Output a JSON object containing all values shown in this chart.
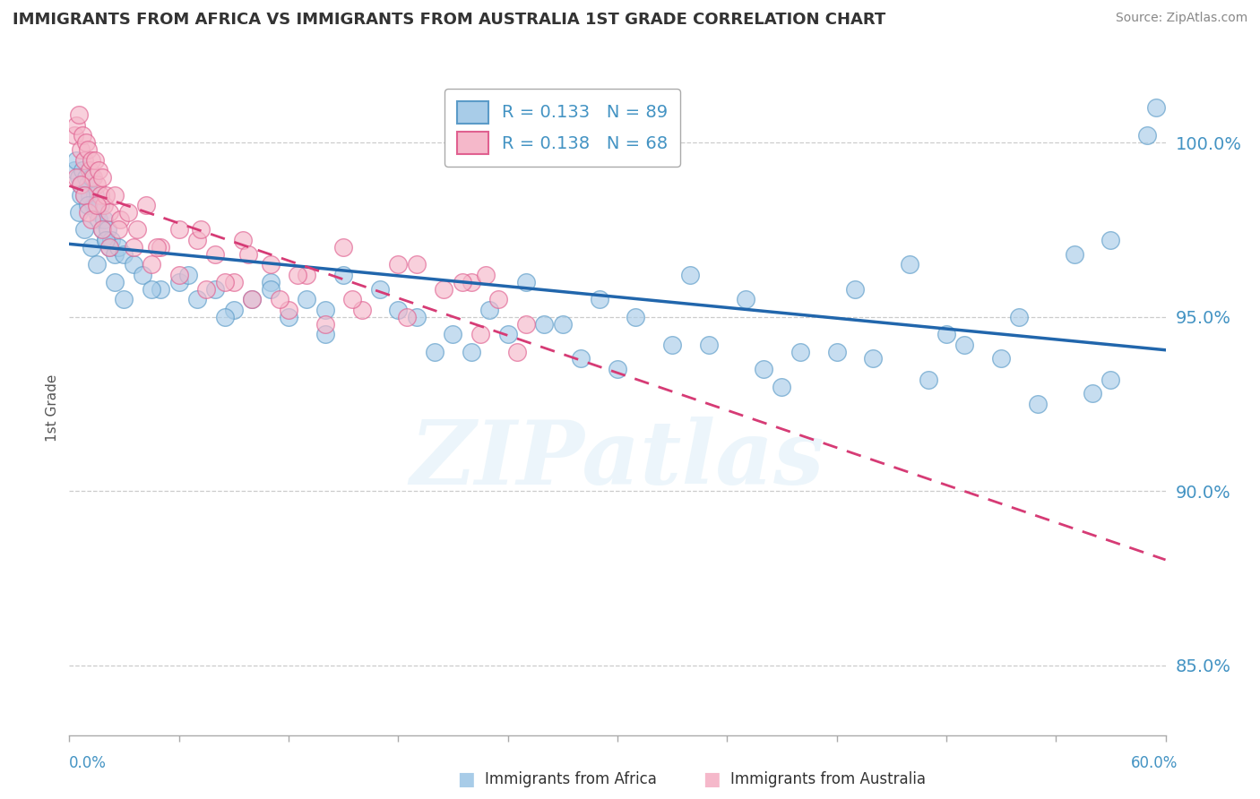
{
  "title": "IMMIGRANTS FROM AFRICA VS IMMIGRANTS FROM AUSTRALIA 1ST GRADE CORRELATION CHART",
  "source": "Source: ZipAtlas.com",
  "ylabel": "1st Grade",
  "xlim": [
    0.0,
    60.0
  ],
  "ylim": [
    83.0,
    101.8
  ],
  "yticks": [
    85.0,
    90.0,
    95.0,
    100.0
  ],
  "xticks": [
    0.0,
    6.0,
    12.0,
    18.0,
    24.0,
    30.0,
    36.0,
    42.0,
    48.0,
    54.0,
    60.0
  ],
  "legend_r1": "R = 0.133",
  "legend_n1": "N = 89",
  "legend_r2": "R = 0.138",
  "legend_n2": "N = 68",
  "color_africa": "#a8cce8",
  "color_africa_edge": "#5b9bc8",
  "color_australia": "#f5b8ca",
  "color_australia_edge": "#e06090",
  "color_africa_line": "#2166ac",
  "color_australia_line": "#d63b75",
  "watermark": "ZIPatlas",
  "africa_x": [
    0.3,
    0.4,
    0.5,
    0.6,
    0.7,
    0.8,
    0.9,
    1.0,
    1.1,
    1.2,
    1.3,
    1.4,
    1.5,
    1.6,
    1.7,
    1.8,
    1.9,
    2.0,
    2.1,
    2.2,
    2.3,
    2.5,
    2.7,
    3.0,
    3.5,
    4.0,
    5.0,
    6.0,
    7.0,
    8.0,
    9.0,
    10.0,
    11.0,
    12.0,
    13.0,
    14.0,
    15.0,
    17.0,
    19.0,
    21.0,
    23.0,
    25.0,
    27.0,
    29.0,
    31.0,
    34.0,
    37.0,
    40.0,
    43.0,
    46.0,
    49.0,
    52.0,
    55.0,
    57.0,
    59.0,
    0.5,
    0.6,
    0.8,
    1.0,
    1.2,
    1.5,
    2.0,
    2.5,
    3.0,
    4.5,
    6.5,
    8.5,
    11.0,
    14.0,
    18.0,
    22.0,
    26.0,
    30.0,
    35.0,
    39.0,
    44.0,
    48.0,
    53.0,
    57.0,
    59.5,
    20.0,
    24.0,
    28.0,
    33.0,
    38.0,
    42.0,
    47.0,
    51.0,
    56.0
  ],
  "africa_y": [
    99.2,
    99.5,
    99.0,
    98.8,
    99.2,
    98.5,
    99.0,
    98.8,
    98.5,
    99.0,
    98.2,
    98.5,
    98.0,
    97.8,
    98.2,
    97.5,
    97.8,
    97.2,
    97.5,
    97.0,
    97.2,
    96.8,
    97.0,
    96.8,
    96.5,
    96.2,
    95.8,
    96.0,
    95.5,
    95.8,
    95.2,
    95.5,
    96.0,
    95.0,
    95.5,
    95.2,
    96.2,
    95.8,
    95.0,
    94.5,
    95.2,
    96.0,
    94.8,
    95.5,
    95.0,
    96.2,
    95.5,
    94.0,
    95.8,
    96.5,
    94.2,
    95.0,
    96.8,
    97.2,
    100.2,
    98.0,
    98.5,
    97.5,
    98.2,
    97.0,
    96.5,
    97.2,
    96.0,
    95.5,
    95.8,
    96.2,
    95.0,
    95.8,
    94.5,
    95.2,
    94.0,
    94.8,
    93.5,
    94.2,
    93.0,
    93.8,
    94.5,
    92.5,
    93.2,
    101.0,
    94.0,
    94.5,
    93.8,
    94.2,
    93.5,
    94.0,
    93.2,
    93.8,
    92.8
  ],
  "australia_x": [
    0.3,
    0.4,
    0.5,
    0.6,
    0.7,
    0.8,
    0.9,
    1.0,
    1.1,
    1.2,
    1.3,
    1.4,
    1.5,
    1.6,
    1.7,
    1.8,
    1.9,
    2.0,
    2.2,
    2.5,
    2.8,
    3.2,
    3.7,
    4.2,
    5.0,
    6.0,
    7.0,
    8.0,
    9.5,
    11.0,
    13.0,
    15.0,
    18.0,
    22.0,
    0.4,
    0.6,
    0.8,
    1.0,
    1.2,
    1.5,
    1.8,
    2.2,
    2.7,
    3.5,
    4.5,
    6.0,
    7.5,
    9.0,
    10.0,
    12.0,
    14.0,
    16.0,
    8.5,
    11.5,
    4.8,
    7.2,
    9.8,
    12.5,
    15.5,
    18.5,
    22.5,
    24.5,
    19.0,
    21.5,
    23.5,
    25.0,
    20.5,
    22.8
  ],
  "australia_y": [
    100.2,
    100.5,
    100.8,
    99.8,
    100.2,
    99.5,
    100.0,
    99.8,
    99.2,
    99.5,
    99.0,
    99.5,
    98.8,
    99.2,
    98.5,
    99.0,
    98.2,
    98.5,
    98.0,
    98.5,
    97.8,
    98.0,
    97.5,
    98.2,
    97.0,
    97.5,
    97.2,
    96.8,
    97.2,
    96.5,
    96.2,
    97.0,
    96.5,
    96.0,
    99.0,
    98.8,
    98.5,
    98.0,
    97.8,
    98.2,
    97.5,
    97.0,
    97.5,
    97.0,
    96.5,
    96.2,
    95.8,
    96.0,
    95.5,
    95.2,
    94.8,
    95.2,
    96.0,
    95.5,
    97.0,
    97.5,
    96.8,
    96.2,
    95.5,
    95.0,
    94.5,
    94.0,
    96.5,
    96.0,
    95.5,
    94.8,
    95.8,
    96.2
  ]
}
